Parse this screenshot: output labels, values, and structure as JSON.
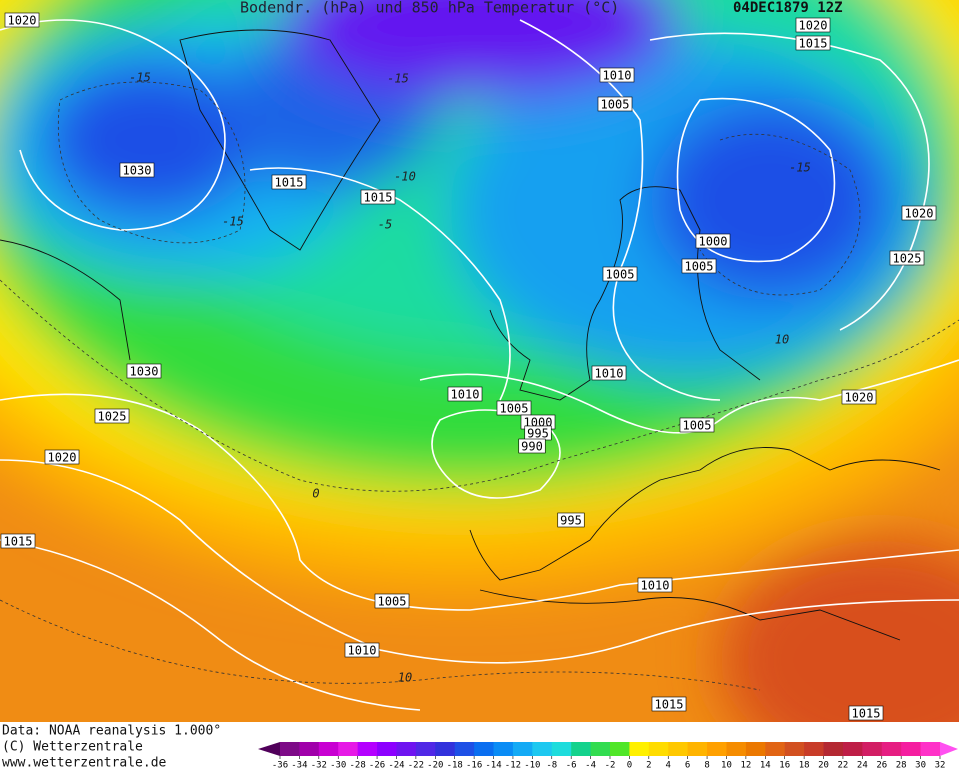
{
  "header": {
    "title": "Bodendr. (hPa) und 850 hPa Temperatur (°C)",
    "date": "04DEC1879 12Z"
  },
  "isobar_labels": [
    1020,
    1020,
    1015,
    1010,
    1005,
    1030,
    1015,
    1015,
    1000,
    1005,
    1020,
    1025,
    1005,
    1010,
    1030,
    1010,
    1005,
    1000,
    995,
    990,
    1005,
    1020,
    1025,
    1020,
    995,
    1015,
    1005,
    1010,
    1010,
    1015,
    1015
  ],
  "temperature_labels": [
    -15,
    -15,
    -15,
    -15,
    -10,
    -5,
    0,
    10,
    10
  ],
  "footer": {
    "lines": [
      "Data: NOAA reanalysis 1.000°",
      "(C) Wetterzentrale",
      "www.wetterzentrale.de"
    ]
  },
  "colorbar": {
    "ticks": [
      -36,
      -34,
      -32,
      -30,
      -28,
      -26,
      -24,
      -22,
      -20,
      -18,
      -16,
      -14,
      -12,
      -10,
      -8,
      -6,
      -4,
      -2,
      0,
      2,
      4,
      6,
      8,
      10,
      12,
      14,
      16,
      18,
      20,
      22,
      24,
      26,
      28,
      30,
      32
    ],
    "colors": [
      "#50005a",
      "#7d0a87",
      "#a000aa",
      "#c800d2",
      "#e619e6",
      "#b400ff",
      "#8c00ff",
      "#6e14f0",
      "#5028e6",
      "#3232dc",
      "#1e50e6",
      "#0a6ef0",
      "#0a8cf5",
      "#14aaf5",
      "#1ec8f0",
      "#1edcdc",
      "#14d28c",
      "#32dc50",
      "#50e628",
      "#fff000",
      "#ffdc00",
      "#ffc800",
      "#ffb400",
      "#ffa000",
      "#f58c00",
      "#eb7800",
      "#e16414",
      "#d25020",
      "#c83c28",
      "#b42832",
      "#be1e46",
      "#d21e64",
      "#e61e82",
      "#f51ea0",
      "#ff32c8",
      "#ff50f0"
    ]
  }
}
